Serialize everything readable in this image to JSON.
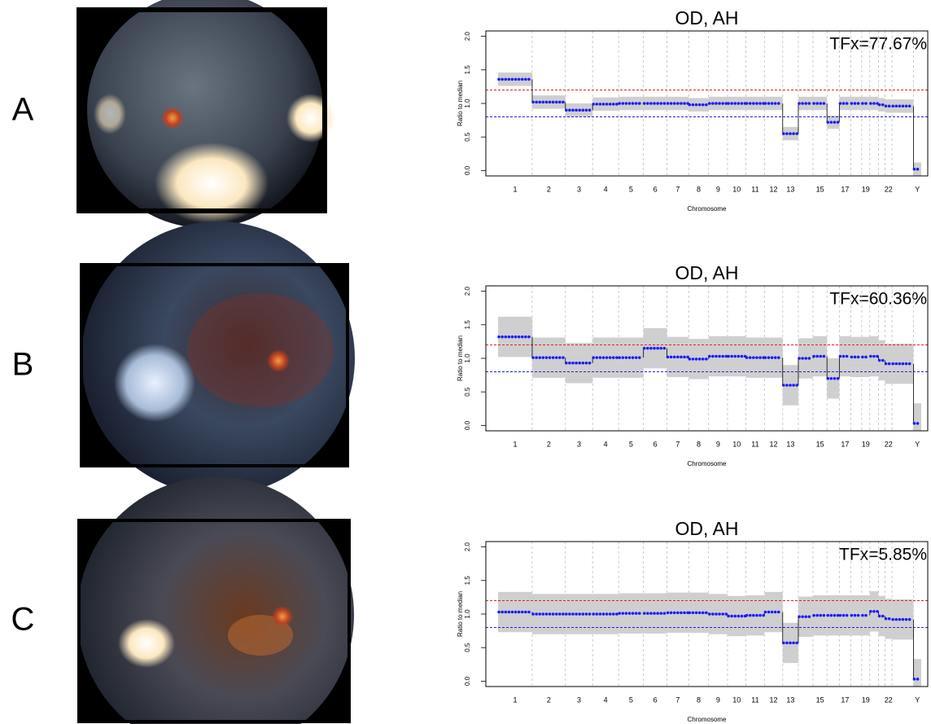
{
  "panels": [
    {
      "label": "A"
    },
    {
      "label": "B"
    },
    {
      "label": "C"
    }
  ],
  "chart_data": [
    {
      "type": "line",
      "title": "OD, AH",
      "annotation": "TFx=77.67%",
      "y_label": "Ratio to median",
      "x_label": "Chromosome",
      "categories": [
        "1",
        "2",
        "3",
        "4",
        "5",
        "6",
        "7",
        "8",
        "9",
        "10",
        "11",
        "12",
        "13",
        null,
        "15",
        null,
        "17",
        null,
        "19",
        null,
        null,
        "22",
        null,
        "Y"
      ],
      "series": [
        {
          "name": null,
          "color": "#1a1aff",
          "values": [
            1.36,
            1.02,
            0.9,
            0.99,
            1.0,
            1.0,
            1.0,
            0.98,
            1.0,
            1.0,
            1.0,
            1.0,
            0.55,
            1.0,
            1.0,
            0.72,
            1.0,
            1.0,
            1.0,
            1.0,
            0.98,
            0.96,
            0.96,
            0.02
          ]
        }
      ],
      "spread": 0.1,
      "thresholds": [
        {
          "value": 1.2,
          "color": "#e02020"
        },
        {
          "value": 0.8,
          "color": "#2020e0"
        }
      ],
      "ylim": [
        -0.08,
        2.08
      ],
      "yticks": [
        {
          "value": 0,
          "label": "0.0"
        },
        {
          "value": 0.5,
          "label": "0.5"
        },
        {
          "value": 1,
          "label": "1.0"
        },
        {
          "value": 1.5,
          "label": "1.5"
        },
        {
          "value": 2,
          "label": "2.0"
        }
      ]
    },
    {
      "type": "line",
      "title": "OD, AH",
      "annotation": "TFx=60.36%",
      "y_label": "Ratio to median",
      "x_label": "Chromosome",
      "categories": [
        "1",
        "2",
        "3",
        "4",
        "5",
        "6",
        "7",
        "8",
        "9",
        "10",
        "11",
        "12",
        "13",
        null,
        "15",
        null,
        "17",
        null,
        "19",
        null,
        null,
        "22",
        null,
        "Y"
      ],
      "series": [
        {
          "name": null,
          "color": "#1a1aff",
          "values": [
            1.32,
            1.01,
            0.93,
            1.01,
            1.01,
            1.15,
            1.02,
            0.99,
            1.03,
            1.03,
            1.01,
            1.01,
            0.6,
            1.0,
            1.03,
            0.7,
            1.03,
            1.02,
            1.02,
            1.03,
            0.97,
            0.92,
            0.92,
            0.03
          ]
        }
      ],
      "spread": 0.3,
      "thresholds": [
        {
          "value": 1.2,
          "color": "#e02020"
        },
        {
          "value": 0.8,
          "color": "#2020e0"
        }
      ],
      "ylim": [
        -0.08,
        2.08
      ],
      "yticks": [
        {
          "value": 0,
          "label": "0.0"
        },
        {
          "value": 0.5,
          "label": "0.5"
        },
        {
          "value": 1,
          "label": "1.0"
        },
        {
          "value": 1.5,
          "label": "1.5"
        },
        {
          "value": 2,
          "label": "2.0"
        }
      ]
    },
    {
      "type": "line",
      "title": "OD, AH",
      "annotation": "TFx=5.85%",
      "y_label": "Ratio to median",
      "x_label": "Chromosome",
      "categories": [
        "1",
        "2",
        "3",
        "4",
        "5",
        "6",
        "7",
        "8",
        "9",
        "10",
        "11",
        "12",
        "13",
        null,
        "15",
        null,
        "17",
        null,
        "19",
        null,
        null,
        "22",
        null,
        "Y"
      ],
      "series": [
        {
          "name": null,
          "color": "#1a1aff",
          "values": [
            1.03,
            1.0,
            1.0,
            1.0,
            1.01,
            1.01,
            1.02,
            1.02,
            1.0,
            0.97,
            0.98,
            1.03,
            0.57,
            0.96,
            0.98,
            0.98,
            0.98,
            0.98,
            0.98,
            1.04,
            0.97,
            0.93,
            0.92,
            0.03
          ]
        }
      ],
      "spread": 0.3,
      "thresholds": [
        {
          "value": 1.2,
          "color": "#e02020"
        },
        {
          "value": 0.8,
          "color": "#2020e0"
        }
      ],
      "ylim": [
        -0.08,
        2.08
      ],
      "yticks": [
        {
          "value": 0,
          "label": "0.0"
        },
        {
          "value": 0.5,
          "label": "0.5"
        },
        {
          "value": 1,
          "label": "1.0"
        },
        {
          "value": 1.5,
          "label": "1.5"
        },
        {
          "value": 2,
          "label": "2.0"
        }
      ]
    }
  ]
}
